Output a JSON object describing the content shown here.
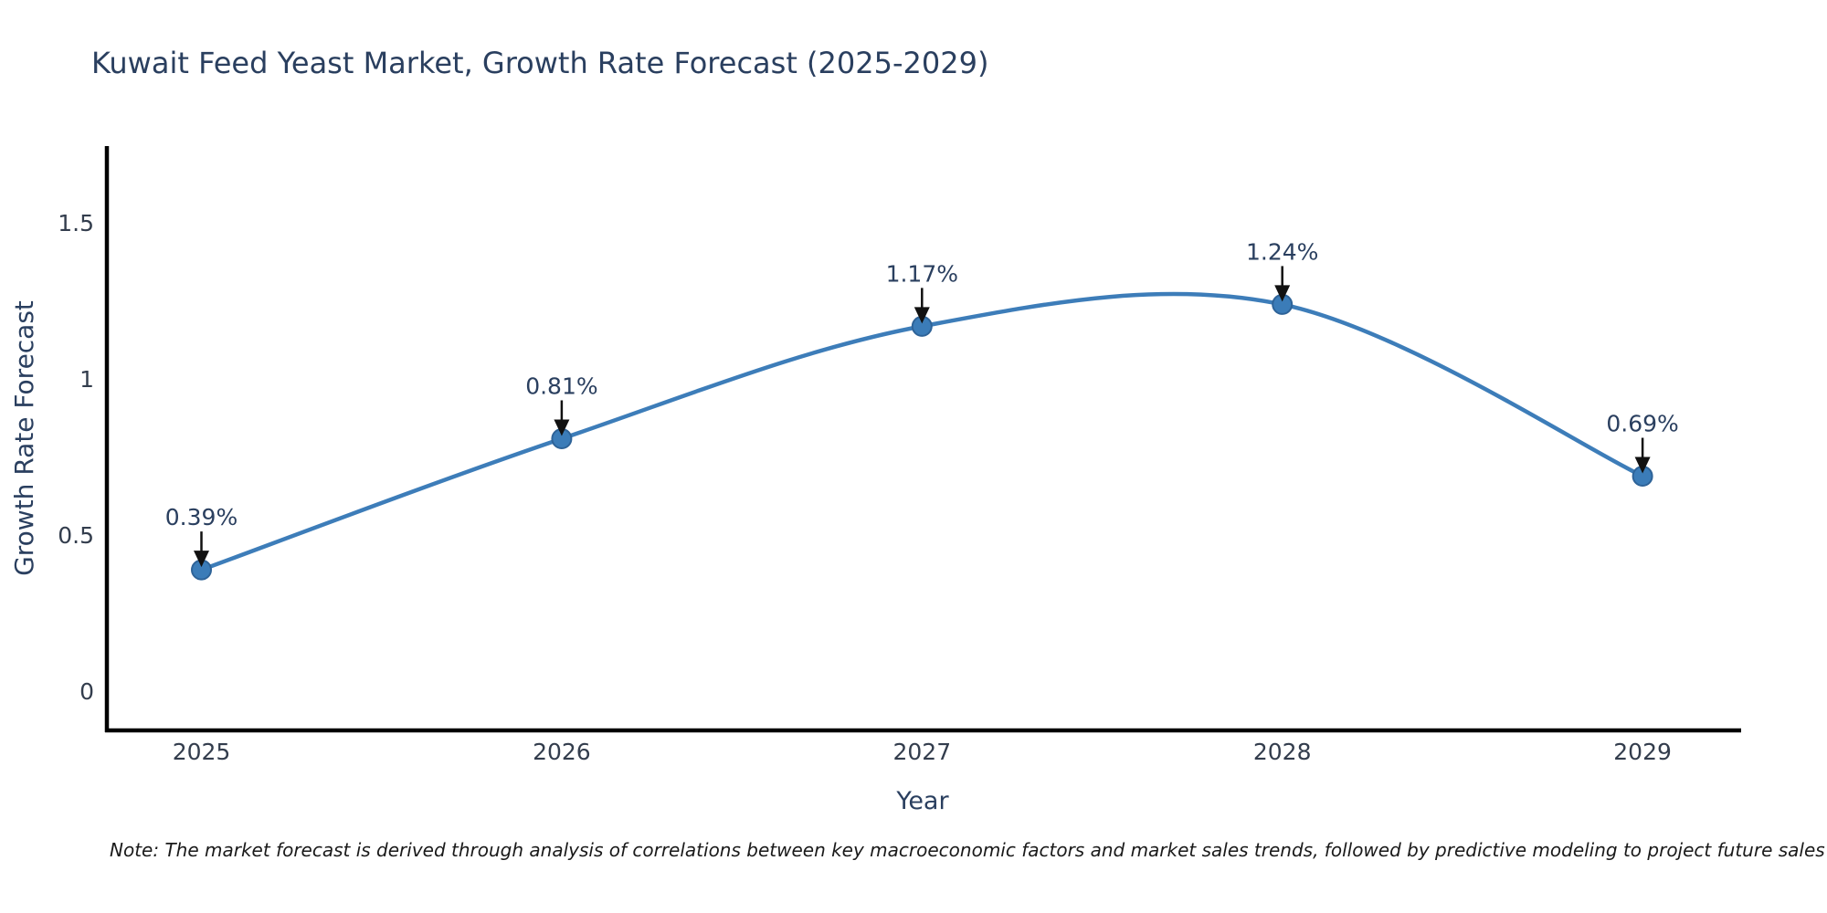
{
  "title": "Kuwait Feed Yeast Market, Growth Rate Forecast (2025-2029)",
  "footnote": "Note: The market forecast is derived through analysis of correlations between key macroeconomic factors and market sales trends, followed by predictive modeling to project future sales",
  "chart_data": {
    "type": "line",
    "title": "Kuwait Feed Yeast Market, Growth Rate Forecast (2025-2029)",
    "xlabel": "Year",
    "ylabel": "Growth Rate Forecast",
    "categories": [
      "2025",
      "2026",
      "2027",
      "2028",
      "2029"
    ],
    "series": [
      {
        "name": "Growth Rate Forecast",
        "values": [
          0.39,
          0.81,
          1.17,
          1.24,
          0.69
        ],
        "point_labels": [
          "0.39%",
          "0.81%",
          "1.17%",
          "1.24%",
          "0.69%"
        ]
      }
    ],
    "line_shape": "spline",
    "markers": true,
    "annotations_have_arrows": true,
    "ytick_values": [
      0,
      0.5,
      1,
      1.5
    ],
    "ytick_labels": [
      "0",
      "0.5",
      "1",
      "1.5"
    ],
    "ylim": [
      -0.13,
      1.75
    ],
    "grid": false,
    "legend": "none",
    "colors": {
      "line": "#3d7db9",
      "marker_fill": "#3b7cb8",
      "marker_edge": "#2e6398",
      "axis_line": "#000000",
      "title_text": "#2a3f5f",
      "tick_text": "#333d4d",
      "annotation_text": "#2a3f5f",
      "arrow": "#111111",
      "note_text": "#1a1a1a",
      "background": "#ffffff"
    }
  }
}
